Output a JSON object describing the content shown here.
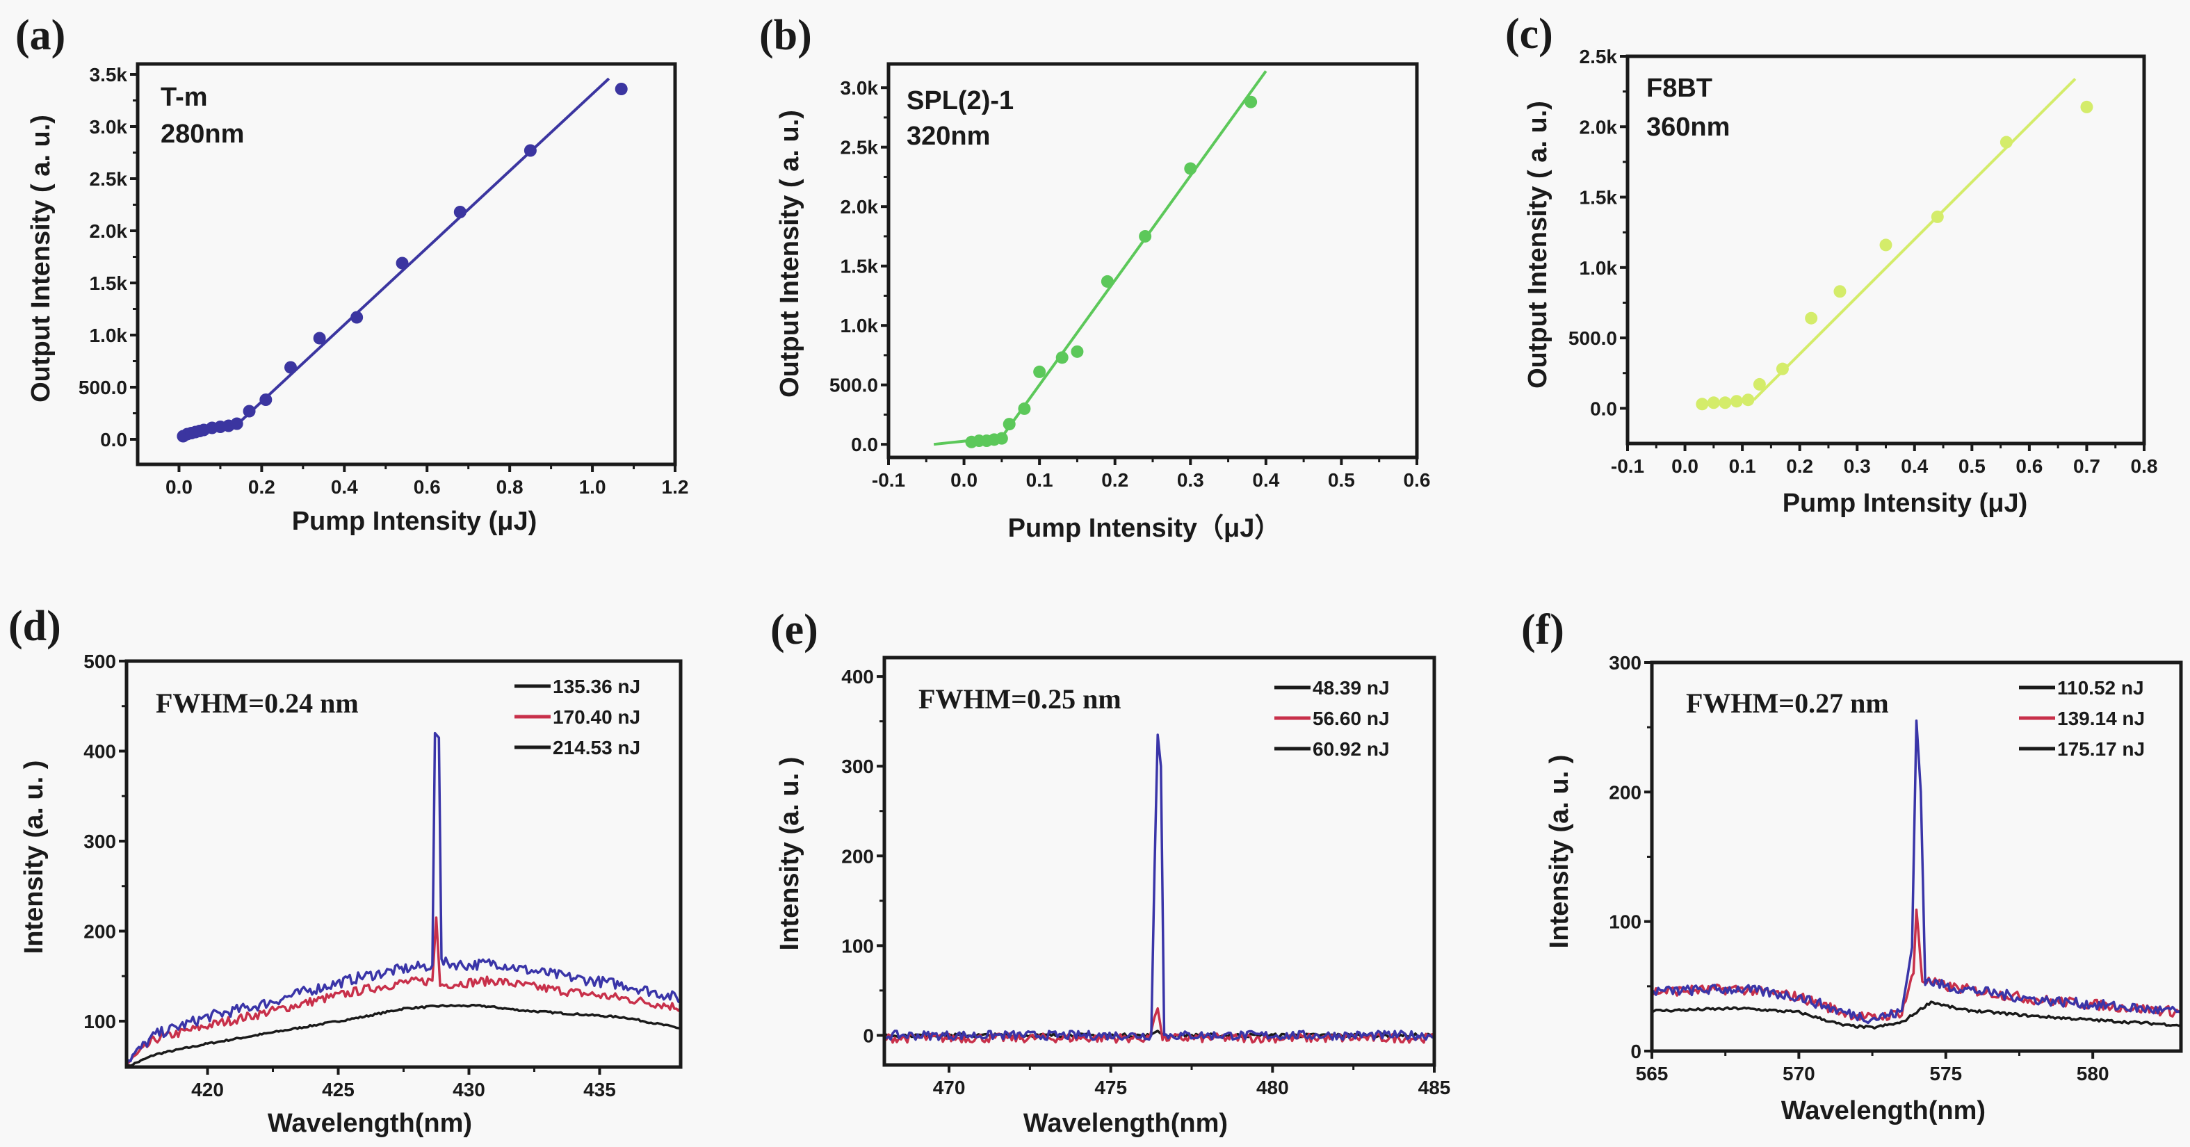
{
  "chart_data": [
    {
      "panel_label": "(a)",
      "type": "scatter",
      "annotations": [
        "T-m",
        "280nm"
      ],
      "xlabel": "Pump Intensity (μJ)",
      "ylabel": "Output Intensity ( a. u.)",
      "xlim": [
        -0.1,
        1.2
      ],
      "ylim": [
        -240,
        3600
      ],
      "xticks": [
        0.0,
        0.2,
        0.4,
        0.6,
        0.8,
        1.0,
        1.2
      ],
      "xticklabels": [
        "0.0",
        "0.2",
        "0.4",
        "0.6",
        "0.8",
        "1.0",
        "1.2"
      ],
      "yticks": [
        0,
        500,
        1000,
        1500,
        2000,
        2500,
        3000,
        3500
      ],
      "yticklabels": [
        "0.0",
        "500.0",
        "1.0k",
        "1.5k",
        "2.0k",
        "2.5k",
        "3.0k",
        "3.5k"
      ],
      "color": "#3b35a0",
      "points": {
        "x": [
          0.01,
          0.02,
          0.03,
          0.04,
          0.05,
          0.06,
          0.08,
          0.1,
          0.12,
          0.14,
          0.17,
          0.21,
          0.27,
          0.34,
          0.43,
          0.54,
          0.68,
          0.85,
          1.07
        ],
        "y": [
          30,
          50,
          60,
          70,
          80,
          90,
          110,
          120,
          130,
          150,
          270,
          380,
          690,
          970,
          1170,
          1690,
          2180,
          2770,
          3360
        ]
      },
      "fit_lines": [
        {
          "x": [
            0.01,
            0.14
          ],
          "y": [
            30,
            140
          ]
        },
        {
          "x": [
            0.14,
            1.04
          ],
          "y": [
            140,
            3460
          ]
        }
      ],
      "grid": false
    },
    {
      "panel_label": "(b)",
      "type": "scatter",
      "annotations": [
        "SPL(2)-1",
        "320nm"
      ],
      "xlabel": "Pump Intensity（μJ）",
      "ylabel": "Output Intensity ( a. u.)",
      "xlim": [
        -0.1,
        0.6
      ],
      "ylim": [
        -110,
        3200
      ],
      "xticks": [
        -0.1,
        0.0,
        0.1,
        0.2,
        0.3,
        0.4,
        0.5,
        0.6
      ],
      "xticklabels": [
        "-0.1",
        "0.0",
        "0.1",
        "0.2",
        "0.3",
        "0.4",
        "0.5",
        "0.6"
      ],
      "yticks": [
        0,
        500,
        1000,
        1500,
        2000,
        2500,
        3000
      ],
      "yticklabels": [
        "0.0",
        "500.0",
        "1.0k",
        "1.5k",
        "2.0k",
        "2.5k",
        "3.0k"
      ],
      "color": "#5cc85a",
      "points": {
        "x": [
          0.01,
          0.02,
          0.03,
          0.04,
          0.05,
          0.06,
          0.08,
          0.1,
          0.13,
          0.15,
          0.19,
          0.24,
          0.3,
          0.38
        ],
        "y": [
          20,
          30,
          30,
          40,
          50,
          170,
          300,
          610,
          730,
          780,
          1370,
          1750,
          2320,
          2880
        ]
      },
      "fit_lines": [
        {
          "x": [
            -0.04,
            0.05
          ],
          "y": [
            0,
            60
          ]
        },
        {
          "x": [
            0.05,
            0.4
          ],
          "y": [
            60,
            3140
          ]
        }
      ],
      "grid": false
    },
    {
      "panel_label": "(c)",
      "type": "scatter",
      "annotations": [
        "F8BT",
        "360nm"
      ],
      "xlabel": "Pump Intensity (μJ)",
      "ylabel": "Output Intensity ( a. u.)",
      "xlim": [
        -0.1,
        0.8
      ],
      "ylim": [
        -250,
        2500
      ],
      "xticks": [
        -0.1,
        0.0,
        0.1,
        0.2,
        0.3,
        0.4,
        0.5,
        0.6,
        0.7,
        0.8
      ],
      "xticklabels": [
        "-0.1",
        "0.0",
        "0.1",
        "0.2",
        "0.3",
        "0.4",
        "0.5",
        "0.6",
        "0.7",
        "0.8"
      ],
      "yticks": [
        0,
        500,
        1000,
        1500,
        2000,
        2500
      ],
      "yticklabels": [
        "0.0",
        "500.0",
        "1.0k",
        "1.5k",
        "2.0k",
        "2.5k"
      ],
      "color": "#d4ec6a",
      "points": {
        "x": [
          0.03,
          0.05,
          0.07,
          0.09,
          0.11,
          0.13,
          0.17,
          0.22,
          0.27,
          0.35,
          0.44,
          0.56,
          0.7
        ],
        "y": [
          30,
          40,
          40,
          50,
          60,
          170,
          280,
          640,
          830,
          1160,
          1360,
          1890,
          2140
        ]
      },
      "fit_lines": [
        {
          "x": [
            0.02,
            0.12
          ],
          "y": [
            20,
            60
          ]
        },
        {
          "x": [
            0.12,
            0.68
          ],
          "y": [
            60,
            2340
          ]
        }
      ],
      "grid": false
    },
    {
      "panel_label": "(d)",
      "type": "line",
      "annotation": "FWHM=0.24 nm",
      "xlabel": "Wavelength(nm)",
      "ylabel": "Intensity (a. u. )",
      "xlim": [
        416.9,
        438.1
      ],
      "ylim": [
        49,
        500
      ],
      "xticks": [
        420,
        425,
        430,
        435
      ],
      "xticklabels": [
        "420",
        "425",
        "430",
        "435"
      ],
      "yticks": [
        100,
        200,
        300,
        400,
        500
      ],
      "yticklabels": [
        "100",
        "200",
        "300",
        "400",
        "500"
      ],
      "legend_position": "top-right",
      "series": [
        {
          "name": "135.36 nJ",
          "color": "#1a1a1a",
          "legend_color": "#1a1a1a",
          "x": [
            416.9,
            418,
            420,
            422,
            424,
            426,
            427.5,
            429,
            430.5,
            432,
            434,
            436,
            438.1
          ],
          "y": [
            49,
            63,
            75,
            85,
            95,
            105,
            114,
            117,
            117,
            112,
            108,
            104,
            92
          ]
        },
        {
          "name": "170.40 nJ",
          "color": "#c8304a",
          "legend_color": "#c8304a",
          "x": [
            416.9,
            418,
            420,
            422,
            424,
            426,
            427.5,
            428.6,
            428.75,
            428.9,
            430,
            431,
            432,
            434,
            436,
            438.1
          ],
          "y": [
            52,
            80,
            95,
            108,
            122,
            135,
            143,
            145,
            215,
            140,
            143,
            145,
            140,
            132,
            125,
            115
          ]
        },
        {
          "name": "214.53 nJ",
          "color": "#3a35a8",
          "legend_color": "#1a1a1a",
          "x": [
            416.9,
            418,
            420,
            422,
            424,
            426,
            427.5,
            428.6,
            428.7,
            428.85,
            428.95,
            430,
            431,
            432,
            434,
            436,
            438.1
          ],
          "y": [
            55,
            85,
            105,
            118,
            135,
            150,
            158,
            162,
            420,
            415,
            165,
            162,
            165,
            158,
            148,
            140,
            125
          ]
        }
      ]
    },
    {
      "panel_label": "(e)",
      "type": "line",
      "annotation": "FWHM=0.25 nm",
      "xlabel": "Wavelength(nm)",
      "ylabel": "Intensity (a. u. )",
      "xlim": [
        468,
        485
      ],
      "ylim": [
        -33,
        421
      ],
      "xticks": [
        470,
        475,
        480,
        485
      ],
      "xticklabels": [
        "470",
        "475",
        "480",
        "485"
      ],
      "yticks": [
        0,
        100,
        200,
        300,
        400
      ],
      "yticklabels": [
        "0",
        "100",
        "200",
        "300",
        "400"
      ],
      "legend_position": "top-right",
      "series": [
        {
          "name": "48.39 nJ",
          "color": "#1a1a1a",
          "legend_color": "#1a1a1a",
          "x": [
            468,
            476.2,
            476.35,
            476.45,
            476.6,
            485
          ],
          "y": [
            0,
            0,
            3,
            5,
            0,
            0
          ]
        },
        {
          "name": "56.60 nJ",
          "color": "#c8304a",
          "legend_color": "#c8304a",
          "x": [
            468,
            476.2,
            476.35,
            476.45,
            476.6,
            485
          ],
          "y": [
            -3,
            -3,
            20,
            30,
            -3,
            -3
          ]
        },
        {
          "name": "60.92 nJ",
          "color": "#3a35a8",
          "legend_color": "#1a1a1a",
          "x": [
            468,
            476.25,
            476.35,
            476.45,
            476.55,
            476.65,
            485
          ],
          "y": [
            0,
            0,
            180,
            335,
            300,
            0,
            0
          ]
        }
      ]
    },
    {
      "panel_label": "(f)",
      "type": "line",
      "annotation": "FWHM=0.27 nm",
      "xlabel": "Wavelength(nm)",
      "ylabel": "Intensity (a. u. )",
      "xlim": [
        565,
        583
      ],
      "ylim": [
        0,
        300
      ],
      "xticks": [
        565,
        570,
        575,
        580
      ],
      "xticklabels": [
        "565",
        "570",
        "575",
        "580"
      ],
      "yticks": [
        0,
        100,
        200,
        300
      ],
      "yticklabels": [
        "0",
        "100",
        "200",
        "300"
      ],
      "legend_position": "top-right",
      "series": [
        {
          "name": "110.52 nJ",
          "color": "#1a1a1a",
          "legend_color": "#1a1a1a",
          "x": [
            565,
            568,
            570,
            571.5,
            572.5,
            573.5,
            574.5,
            575.5,
            578,
            580,
            583
          ],
          "y": [
            31,
            33,
            30,
            20,
            18,
            22,
            38,
            32,
            27,
            24,
            20
          ]
        },
        {
          "name": "139.14 nJ",
          "color": "#c8304a",
          "legend_color": "#c8304a",
          "x": [
            565,
            568,
            570,
            571.5,
            572.5,
            573.5,
            573.9,
            574.0,
            574.2,
            575,
            578,
            580,
            583
          ],
          "y": [
            46,
            48,
            42,
            30,
            25,
            30,
            60,
            110,
            55,
            50,
            40,
            36,
            30
          ]
        },
        {
          "name": "175.17 nJ",
          "color": "#3a35a8",
          "legend_color": "#1a1a1a",
          "x": [
            565,
            568,
            570,
            571.5,
            572.5,
            573.5,
            573.85,
            574.0,
            574.15,
            574.3,
            575,
            578,
            580,
            583
          ],
          "y": [
            46,
            48,
            42,
            30,
            25,
            30,
            80,
            255,
            200,
            55,
            50,
            40,
            36,
            30
          ]
        }
      ]
    }
  ]
}
